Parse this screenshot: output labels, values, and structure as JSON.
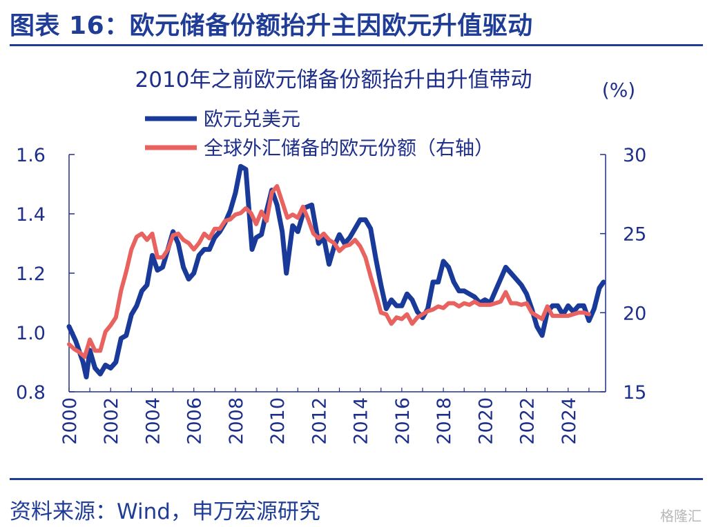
{
  "figure_title": "图表 16：欧元储备份额抬升主因欧元升值驱动",
  "source_text": "资料来源：Wind，申万宏源研究",
  "watermark": "格隆汇",
  "colors": {
    "eurusd": "#1a3a9a",
    "reserve_share": "#e8625f",
    "axis": "#1d2f8a",
    "brand": "#1f3c96"
  },
  "chart_data": {
    "type": "line",
    "title": "2010年之前欧元储备份额抬升由升值带动",
    "right_unit": "(%)",
    "xlim": [
      2000,
      2025.8
    ],
    "ylim_left": [
      0.8,
      1.6
    ],
    "ylim_right": [
      15,
      30
    ],
    "x_ticks": [
      "2000",
      "2002",
      "2004",
      "2006",
      "2008",
      "2010",
      "2012",
      "2014",
      "2016",
      "2018",
      "2020",
      "2022",
      "2024"
    ],
    "left_ticks": [
      "1.6",
      "1.4",
      "1.2",
      "1.0",
      "0.8"
    ],
    "right_ticks": [
      "30",
      "25",
      "20",
      "15"
    ],
    "grid": false,
    "legend_position": "top-left",
    "series": [
      {
        "name": "欧元兑美元",
        "axis": "left",
        "x": [
          2000.0,
          2000.33,
          2000.67,
          2000.83,
          2001.0,
          2001.25,
          2001.5,
          2001.75,
          2002.0,
          2002.25,
          2002.5,
          2002.75,
          2003.0,
          2003.25,
          2003.5,
          2003.75,
          2004.0,
          2004.25,
          2004.5,
          2004.75,
          2005.0,
          2005.25,
          2005.5,
          2005.75,
          2006.0,
          2006.25,
          2006.5,
          2006.75,
          2007.0,
          2007.25,
          2007.5,
          2007.75,
          2008.0,
          2008.25,
          2008.5,
          2008.6,
          2008.8,
          2009.0,
          2009.25,
          2009.5,
          2009.75,
          2010.0,
          2010.25,
          2010.45,
          2010.75,
          2011.0,
          2011.33,
          2011.67,
          2012.0,
          2012.25,
          2012.5,
          2012.75,
          2013.0,
          2013.25,
          2013.5,
          2013.75,
          2014.0,
          2014.25,
          2014.5,
          2014.75,
          2015.0,
          2015.25,
          2015.5,
          2015.75,
          2016.0,
          2016.25,
          2016.5,
          2016.75,
          2017.0,
          2017.25,
          2017.5,
          2017.75,
          2018.0,
          2018.25,
          2018.5,
          2018.75,
          2019.0,
          2019.25,
          2019.5,
          2019.75,
          2020.0,
          2020.25,
          2020.5,
          2020.75,
          2021.0,
          2021.25,
          2021.5,
          2021.75,
          2022.0,
          2022.25,
          2022.5,
          2022.75,
          2023.0,
          2023.25,
          2023.5,
          2023.75,
          2024.0,
          2024.25,
          2024.5,
          2024.75,
          2025.0,
          2025.25,
          2025.5,
          2025.7
        ],
        "values": [
          1.02,
          0.97,
          0.9,
          0.85,
          0.94,
          0.88,
          0.86,
          0.89,
          0.88,
          0.9,
          0.98,
          0.99,
          1.06,
          1.09,
          1.14,
          1.16,
          1.26,
          1.21,
          1.22,
          1.28,
          1.34,
          1.3,
          1.22,
          1.18,
          1.2,
          1.26,
          1.28,
          1.28,
          1.32,
          1.34,
          1.37,
          1.41,
          1.47,
          1.56,
          1.55,
          1.46,
          1.28,
          1.32,
          1.33,
          1.41,
          1.48,
          1.43,
          1.34,
          1.2,
          1.36,
          1.34,
          1.42,
          1.43,
          1.3,
          1.32,
          1.23,
          1.29,
          1.33,
          1.3,
          1.32,
          1.35,
          1.38,
          1.38,
          1.35,
          1.25,
          1.16,
          1.08,
          1.11,
          1.09,
          1.09,
          1.13,
          1.11,
          1.07,
          1.05,
          1.08,
          1.17,
          1.17,
          1.24,
          1.22,
          1.17,
          1.14,
          1.14,
          1.13,
          1.12,
          1.1,
          1.11,
          1.1,
          1.14,
          1.18,
          1.22,
          1.2,
          1.18,
          1.16,
          1.13,
          1.08,
          1.02,
          0.99,
          1.07,
          1.09,
          1.09,
          1.06,
          1.09,
          1.07,
          1.09,
          1.09,
          1.04,
          1.08,
          1.15,
          1.17
        ]
      },
      {
        "name": "全球外汇储备的欧元份额（右轴）",
        "axis": "right",
        "x": [
          2000.0,
          2000.25,
          2000.5,
          2000.75,
          2001.0,
          2001.25,
          2001.5,
          2001.75,
          2002.0,
          2002.25,
          2002.5,
          2002.75,
          2003.0,
          2003.25,
          2003.5,
          2003.75,
          2004.0,
          2004.25,
          2004.5,
          2004.75,
          2005.0,
          2005.25,
          2005.5,
          2005.75,
          2006.0,
          2006.25,
          2006.5,
          2006.75,
          2007.0,
          2007.25,
          2007.5,
          2007.75,
          2008.0,
          2008.25,
          2008.5,
          2008.75,
          2009.0,
          2009.25,
          2009.5,
          2009.75,
          2010.0,
          2010.25,
          2010.5,
          2010.75,
          2011.0,
          2011.25,
          2011.5,
          2011.75,
          2012.0,
          2012.25,
          2012.5,
          2012.75,
          2013.0,
          2013.25,
          2013.5,
          2013.75,
          2014.0,
          2014.25,
          2014.5,
          2014.75,
          2015.0,
          2015.25,
          2015.5,
          2015.75,
          2016.0,
          2016.25,
          2016.5,
          2016.75,
          2017.0,
          2017.25,
          2017.5,
          2017.75,
          2018.0,
          2018.25,
          2018.5,
          2018.75,
          2019.0,
          2019.25,
          2019.5,
          2019.75,
          2020.0,
          2020.25,
          2020.5,
          2020.75,
          2021.0,
          2021.25,
          2021.5,
          2021.75,
          2022.0,
          2022.25,
          2022.5,
          2022.75,
          2023.0,
          2023.25,
          2023.5,
          2023.75,
          2024.0,
          2024.25,
          2024.5,
          2024.75,
          2025.0
        ],
        "values": [
          18.0,
          17.7,
          17.5,
          17.2,
          18.3,
          17.6,
          17.6,
          18.8,
          19.2,
          19.7,
          21.4,
          22.6,
          24.0,
          24.8,
          25.0,
          24.6,
          25.0,
          23.5,
          23.5,
          24.0,
          24.9,
          25.0,
          24.6,
          24.4,
          24.0,
          24.4,
          25.0,
          24.7,
          25.3,
          25.3,
          25.8,
          25.9,
          26.2,
          26.3,
          26.6,
          26.3,
          25.6,
          26.4,
          25.8,
          27.6,
          28.0,
          27.0,
          26.0,
          26.2,
          26.0,
          26.7,
          25.9,
          25.0,
          24.7,
          25.0,
          24.6,
          24.4,
          23.9,
          24.2,
          24.3,
          24.6,
          24.2,
          23.5,
          22.3,
          21.2,
          20.0,
          19.9,
          19.3,
          19.7,
          19.6,
          19.9,
          19.3,
          19.7,
          19.9,
          20.1,
          20.2,
          20.4,
          20.3,
          20.6,
          20.6,
          20.4,
          20.6,
          20.5,
          20.7,
          20.5,
          20.5,
          20.5,
          20.6,
          20.7,
          21.3,
          20.6,
          20.6,
          20.5,
          20.6,
          20.0,
          19.8,
          19.6,
          20.4,
          19.8,
          19.8,
          19.8,
          19.8,
          19.9,
          20.0,
          20.0,
          19.9
        ]
      }
    ]
  }
}
